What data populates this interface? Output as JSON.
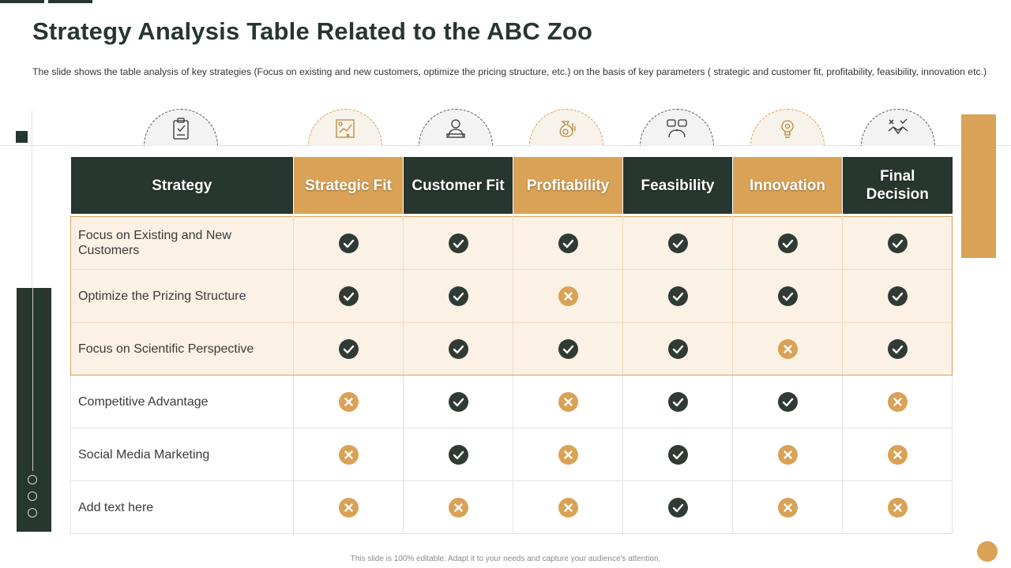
{
  "slide": {
    "title": "Strategy Analysis Table Related to the ABC Zoo",
    "subtitle": "The slide shows the table analysis of key strategies (Focus on existing and new customers, optimize the pricing structure, etc.) on the basis of key parameters ( strategic and customer fit, profitability, feasibility, innovation etc.)",
    "footer": "This slide is 100% editable. Adapt it to your needs and capture your audience's attention."
  },
  "colors": {
    "dark": "#27362f",
    "accent": "#d9a256",
    "highlight_row": "#fbf1e5"
  },
  "icons": [
    "clipboard-icon",
    "strategy-chart-icon",
    "customer-icon",
    "money-bag-icon",
    "brainstorm-icon",
    "lightbulb-gear-icon",
    "decision-handshake-icon"
  ],
  "table": {
    "headers": [
      {
        "label": "Strategy",
        "style": "dark"
      },
      {
        "label": "Strategic Fit",
        "style": "gold"
      },
      {
        "label": "Customer Fit",
        "style": "dark"
      },
      {
        "label": "Profitability",
        "style": "gold"
      },
      {
        "label": "Feasibility",
        "style": "dark"
      },
      {
        "label": "Innovation",
        "style": "gold"
      },
      {
        "label": "Final Decision",
        "style": "dark"
      }
    ],
    "rows": [
      {
        "strategy": "Focus on Existing and New Customers",
        "highlighted": true,
        "marks": [
          "check",
          "check",
          "check",
          "check",
          "check",
          "check"
        ]
      },
      {
        "strategy": "Optimize the Prizing Structure",
        "highlighted": true,
        "marks": [
          "check",
          "check",
          "cross",
          "check",
          "check",
          "check"
        ]
      },
      {
        "strategy": "Focus on Scientific Perspective",
        "highlighted": true,
        "marks": [
          "check",
          "check",
          "check",
          "check",
          "cross",
          "check"
        ]
      },
      {
        "strategy": "Competitive Advantage",
        "highlighted": false,
        "marks": [
          "cross",
          "check",
          "cross",
          "check",
          "check",
          "cross"
        ]
      },
      {
        "strategy": "Social Media Marketing",
        "highlighted": false,
        "marks": [
          "cross",
          "check",
          "cross",
          "check",
          "cross",
          "cross"
        ]
      },
      {
        "strategy": "Add text here",
        "highlighted": false,
        "marks": [
          "cross",
          "cross",
          "cross",
          "check",
          "cross",
          "cross"
        ]
      }
    ]
  }
}
